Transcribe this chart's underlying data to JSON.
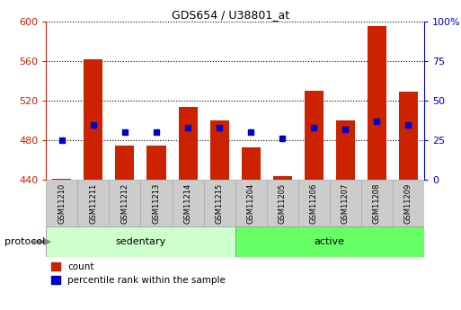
{
  "title": "GDS654 / U38801_at",
  "samples": [
    "GSM11210",
    "GSM11211",
    "GSM11212",
    "GSM11213",
    "GSM11214",
    "GSM11215",
    "GSM11204",
    "GSM11205",
    "GSM11206",
    "GSM11207",
    "GSM11208",
    "GSM11209"
  ],
  "count_values": [
    441,
    562,
    475,
    475,
    514,
    500,
    473,
    444,
    530,
    500,
    596,
    529
  ],
  "percentile_values": [
    25,
    35,
    30,
    30,
    33,
    33,
    30,
    26,
    33,
    32,
    37,
    35
  ],
  "baseline": 440,
  "ylim_left": [
    440,
    600
  ],
  "ylim_right": [
    0,
    100
  ],
  "yticks_left": [
    440,
    480,
    520,
    560,
    600
  ],
  "yticks_right": [
    0,
    25,
    50,
    75,
    100
  ],
  "bar_color": "#cc2200",
  "dot_color": "#0000cc",
  "groups": [
    {
      "label": "sedentary",
      "start": 0,
      "end": 6,
      "color": "#ccffcc"
    },
    {
      "label": "active",
      "start": 6,
      "end": 12,
      "color": "#66ff66"
    }
  ],
  "group_label_prefix": "protocol",
  "legend_count_label": "count",
  "legend_percentile_label": "percentile rank within the sample",
  "bar_color_hex": "#cc2200",
  "dot_color_hex": "#0000cc",
  "left_label_color": "#cc2200",
  "right_label_color": "#0000cc",
  "title_color": "#000000",
  "sample_box_color": "#cccccc",
  "sample_box_edge": "#aaaaaa"
}
